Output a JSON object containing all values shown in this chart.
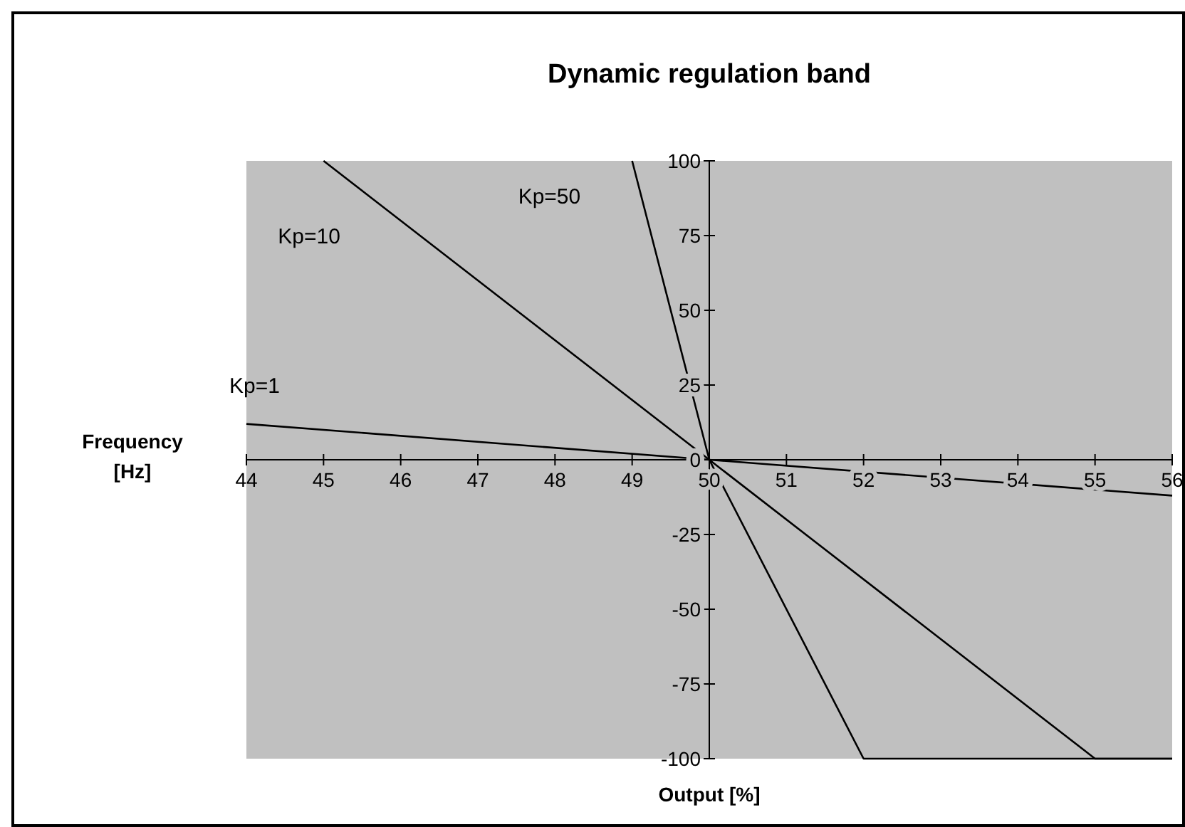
{
  "chart_data": {
    "type": "line",
    "title": "Dynamic regulation band",
    "xlabel": "Output [%]",
    "ylabel": "Frequency [Hz]",
    "xlim": [
      44,
      56
    ],
    "xticks": [
      44,
      45,
      46,
      47,
      48,
      49,
      50,
      51,
      52,
      53,
      54,
      55,
      56
    ],
    "ylim": [
      -100,
      100
    ],
    "yticks": [
      -100,
      -75,
      -50,
      -25,
      0,
      25,
      50,
      75,
      100
    ],
    "grid": false,
    "legend": false,
    "series": [
      {
        "name": "Kp=1",
        "color": "#000000",
        "x": [
          44,
          50,
          56
        ],
        "values": [
          12,
          0,
          -12
        ]
      },
      {
        "name": "Kp=10",
        "color": "#000000",
        "x": [
          45,
          50,
          55,
          56
        ],
        "values": [
          100,
          0,
          -100,
          -100
        ]
      },
      {
        "name": "Kp=50",
        "color": "#000000",
        "x": [
          49,
          50,
          52,
          56
        ],
        "values": [
          100,
          0,
          -100,
          -100
        ]
      }
    ]
  }
}
